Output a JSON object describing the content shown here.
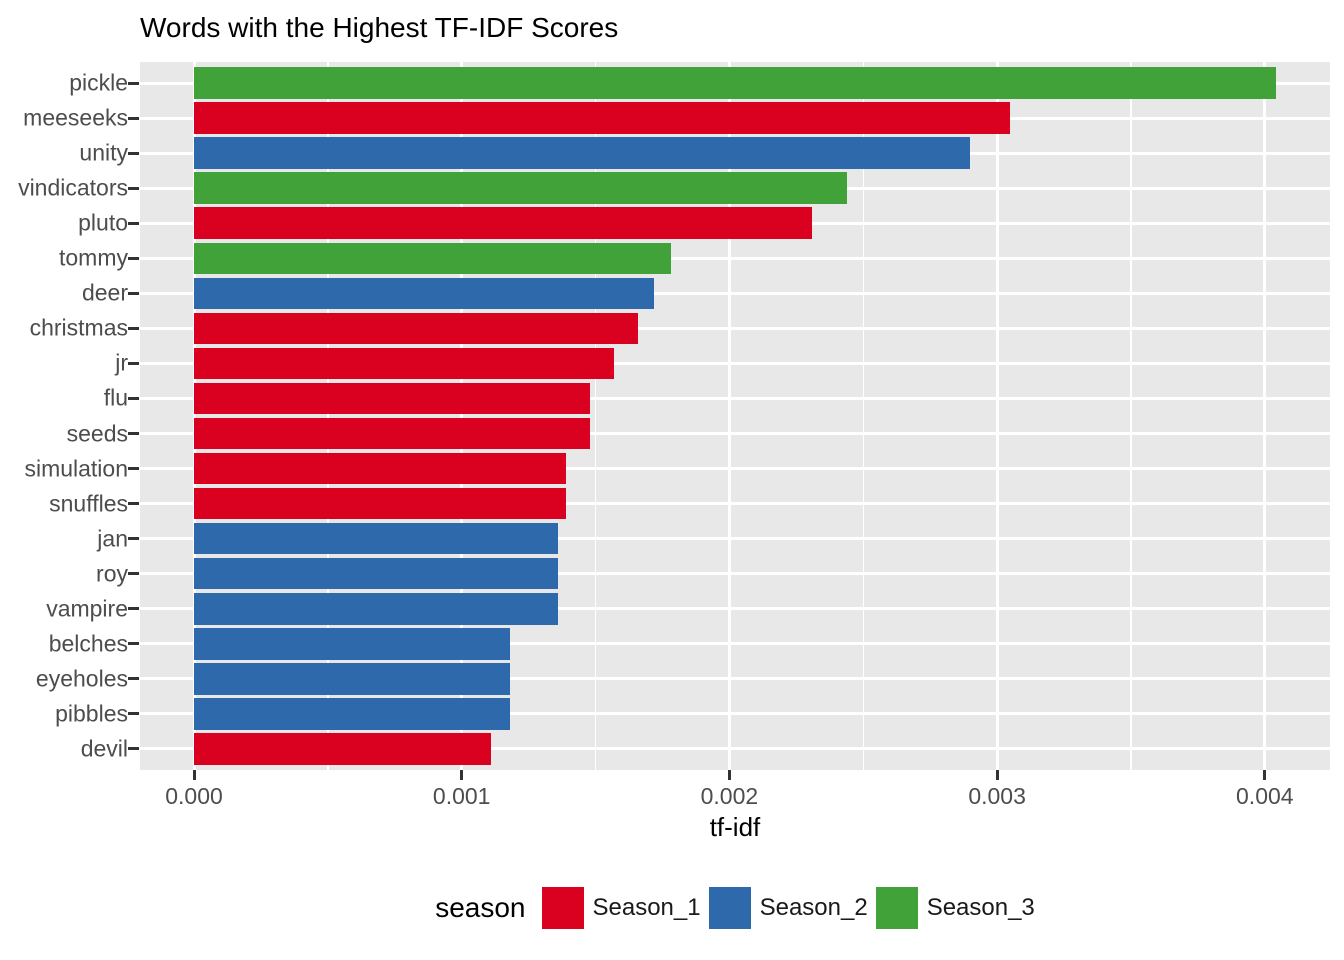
{
  "title": "Words with the Highest TF-IDF Scores",
  "x_axis": {
    "label": "tf-idf",
    "tick_labels": [
      "0.000",
      "0.001",
      "0.002",
      "0.003",
      "0.004"
    ]
  },
  "legend": {
    "title": "season",
    "items": [
      {
        "label": "Season_1",
        "color": "#DA001F"
      },
      {
        "label": "Season_2",
        "color": "#2D69AB"
      },
      {
        "label": "Season_3",
        "color": "#41A23A"
      }
    ]
  },
  "colors": {
    "panel_background": "#E8E8E8",
    "gridline": "#FFFFFF",
    "axis_text": "#4D4D4D",
    "tick_mark": "#333333",
    "title_text": "#000000"
  },
  "chart_data": {
    "type": "bar",
    "orientation": "horizontal",
    "title": "Words with the Highest TF-IDF Scores",
    "xlabel": "tf-idf",
    "ylabel": "",
    "xlim": [
      0,
      0.00424
    ],
    "x_ticks": [
      0,
      0.001,
      0.002,
      0.003,
      0.004
    ],
    "x_minor_ticks": [
      0.0005,
      0.0015,
      0.0025,
      0.0035
    ],
    "grid": true,
    "legend_title": "season",
    "legend_position": "bottom",
    "series_colors": {
      "Season_1": "#DA001F",
      "Season_2": "#2D69AB",
      "Season_3": "#41A23A"
    },
    "categories": [
      "pickle",
      "meeseeks",
      "unity",
      "vindicators",
      "pluto",
      "tommy",
      "deer",
      "christmas",
      "jr",
      "flu",
      "seeds",
      "simulation",
      "snuffles",
      "jan",
      "roy",
      "vampire",
      "belches",
      "eyeholes",
      "pibbles",
      "devil"
    ],
    "values": [
      0.00404,
      0.00305,
      0.0029,
      0.00244,
      0.00231,
      0.00178,
      0.00172,
      0.00166,
      0.00157,
      0.00148,
      0.00148,
      0.00139,
      0.00139,
      0.00136,
      0.00136,
      0.00136,
      0.00118,
      0.00118,
      0.00118,
      0.00111
    ],
    "groups": [
      "Season_3",
      "Season_1",
      "Season_2",
      "Season_3",
      "Season_1",
      "Season_3",
      "Season_2",
      "Season_1",
      "Season_1",
      "Season_1",
      "Season_1",
      "Season_1",
      "Season_1",
      "Season_2",
      "Season_2",
      "Season_2",
      "Season_2",
      "Season_2",
      "Season_2",
      "Season_1"
    ]
  }
}
